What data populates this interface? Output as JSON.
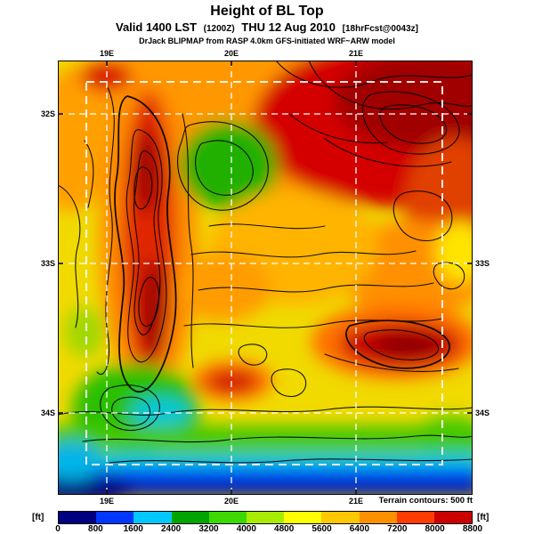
{
  "header": {
    "title": "Height of BL Top",
    "valid_line": {
      "part1": "Valid 1400 LST",
      "zulu": "(1200Z)",
      "part2": "THU 12 Aug 2010",
      "fcst": "[18hrFcst@0043z]"
    },
    "model_line": "DrJack BLIPMAP from RASP 4.0km GFS-initiated WRF~ARW model"
  },
  "map": {
    "lon_labels": [
      "19E",
      "20E",
      "21E"
    ],
    "lat_labels_left": [
      "32S",
      "33S",
      "34S"
    ],
    "lat_labels_right": [
      "33S",
      "34S"
    ]
  },
  "footer": {
    "terrain_note": "Terrain contours: 500 ft",
    "unit_left": "[ft]",
    "unit_right": "[ft]"
  },
  "colorbar": {
    "units": "ft",
    "tick_labels": [
      "0",
      "800",
      "1600",
      "2400",
      "3200",
      "4000",
      "4800",
      "5600",
      "6400",
      "7200",
      "8000",
      "8800"
    ],
    "colors": [
      "#000080",
      "#0038ff",
      "#00c8ff",
      "#00a400",
      "#3cd800",
      "#a8ec00",
      "#ffff00",
      "#ffc800",
      "#ff9000",
      "#ff3c00",
      "#cc0000"
    ]
  }
}
